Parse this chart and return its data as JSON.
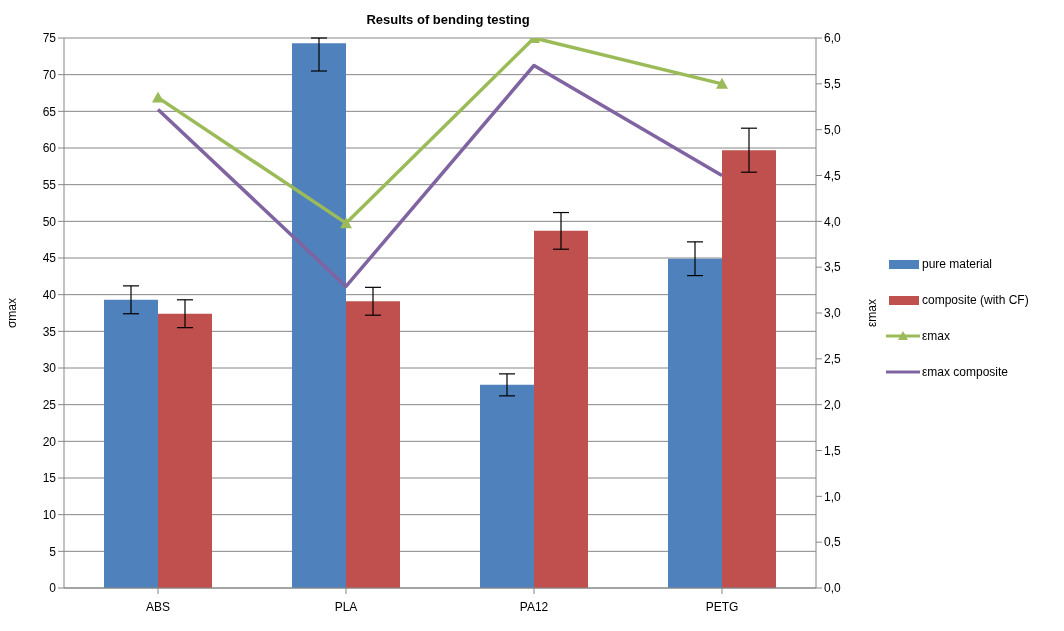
{
  "chart_data": {
    "type": "bar",
    "title": "Results of bending testing",
    "ylabel": "σmax",
    "y2label": "εmax",
    "categories": [
      "ABS",
      "PLA",
      "PA12",
      "PETG"
    ],
    "series": [
      {
        "name": "pure material",
        "color": "#4f81bd",
        "values": [
          39.3,
          74.3,
          27.7,
          44.9
        ],
        "errors": [
          1.9,
          [
            70.5,
            75
          ],
          1.5,
          2.3
        ]
      },
      {
        "name": "composite (with CF)",
        "color": "#c0504d",
        "values": [
          37.4,
          39.1,
          48.7,
          59.7
        ],
        "errors": [
          1.9,
          1.9,
          2.5,
          3.0
        ]
      },
      {
        "name": "εmax",
        "type": "line",
        "axis": "y2",
        "color": "#9bbb59",
        "marker": "triangle",
        "values": [
          5.35,
          3.98,
          6.0,
          5.5
        ]
      },
      {
        "name": "εmax composite",
        "type": "line",
        "axis": "y2",
        "color": "#8064a2",
        "marker": "none",
        "values": [
          5.22,
          3.29,
          5.7,
          4.5
        ]
      }
    ],
    "ylim": [
      0,
      75
    ],
    "yticks": [
      0,
      5,
      10,
      15,
      20,
      25,
      30,
      35,
      40,
      45,
      50,
      55,
      60,
      65,
      70,
      75
    ],
    "y2lim": [
      0,
      6
    ],
    "y2ticks": [
      {
        "value": 0,
        "label": "0,0"
      },
      {
        "value": 0.5,
        "label": "0,5"
      },
      {
        "value": 1,
        "label": "1,0"
      },
      {
        "value": 1.5,
        "label": "1,5"
      },
      {
        "value": 2,
        "label": "2,0"
      },
      {
        "value": 2.5,
        "label": "2,5"
      },
      {
        "value": 3,
        "label": "3,0"
      },
      {
        "value": 3.5,
        "label": "3,5"
      },
      {
        "value": 4,
        "label": "4,0"
      },
      {
        "value": 4.5,
        "label": "4,5"
      },
      {
        "value": 5,
        "label": "5,0"
      },
      {
        "value": 5.5,
        "label": "5,5"
      },
      {
        "value": 6,
        "label": "6,0"
      }
    ],
    "grid": "y",
    "legend": "right",
    "line_style": "solid"
  }
}
